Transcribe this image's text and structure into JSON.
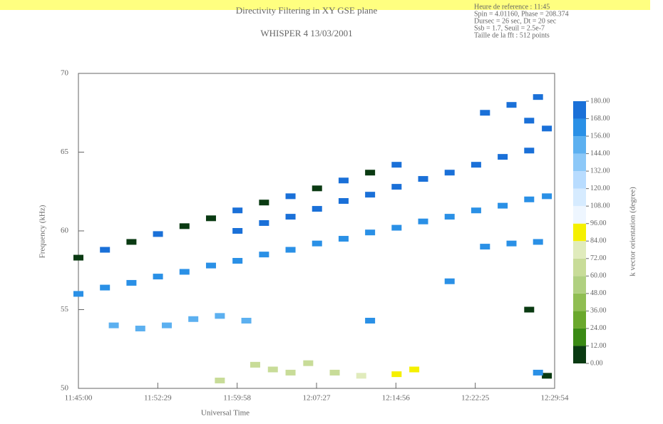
{
  "chart_data": {
    "type": "heatmap",
    "title": "Directivity Filtering in XY GSE plane",
    "subtitle": "WHISPER 4  13/03/2001",
    "info": [
      "Heure de reference : 11:45",
      "Spin = 4.01160, Phase = 208.374",
      "Dursec = 26 sec, Dt = 20 sec",
      "Ssb = 1.7, Seuil = 2.5e-7",
      "Taille de la fft : 512 points"
    ],
    "x_label": "Universal Time",
    "y_label": "Frequency (kHz)",
    "colorbar_label": "k vector orientation (degree)",
    "xlim": [
      0,
      2694
    ],
    "xticks": [
      {
        "value": 0,
        "label": "11:45:00"
      },
      {
        "value": 449,
        "label": "11:52:29"
      },
      {
        "value": 898,
        "label": "11:59:58"
      },
      {
        "value": 1347,
        "label": "12:07:27"
      },
      {
        "value": 1796,
        "label": "12:14:56"
      },
      {
        "value": 2245,
        "label": "12:22:25"
      },
      {
        "value": 2694,
        "label": "12:29:54"
      }
    ],
    "ylim": [
      50,
      70
    ],
    "yticks": [
      50,
      55,
      60,
      65,
      70
    ],
    "clim": [
      0,
      180
    ],
    "cticks": [
      {
        "value": 0,
        "label": "0.00"
      },
      {
        "value": 12,
        "label": "12.00"
      },
      {
        "value": 24,
        "label": "24.00"
      },
      {
        "value": 36,
        "label": "36.00"
      },
      {
        "value": 48,
        "label": "48.00"
      },
      {
        "value": 60,
        "label": "60.00"
      },
      {
        "value": 72,
        "label": "72.00"
      },
      {
        "value": 84,
        "label": "84.00"
      },
      {
        "value": 96,
        "label": "96.00"
      },
      {
        "value": 108,
        "label": "108.00"
      },
      {
        "value": 120,
        "label": "120.00"
      },
      {
        "value": 132,
        "label": "132.00"
      },
      {
        "value": 144,
        "label": "144.00"
      },
      {
        "value": 156,
        "label": "156.00"
      },
      {
        "value": 168,
        "label": "168.00"
      },
      {
        "value": 180,
        "label": "180.00"
      }
    ],
    "colorscale": [
      "#0a3a12",
      "#3a8a14",
      "#6aa82c",
      "#90be52",
      "#b0d080",
      "#c8dc98",
      "#e0ebbc",
      "#f5f000",
      "#eef6ff",
      "#d6ebff",
      "#b8dcff",
      "#8cc8f8",
      "#5cb0f0",
      "#2a90e6",
      "#1a70d8"
    ],
    "points": {
      "x": [
        0,
        150,
        300,
        450,
        600,
        750,
        900,
        1050,
        1200,
        1350,
        1500,
        1650,
        1800,
        1950,
        2100,
        2250,
        2400,
        2550,
        2650,
        0,
        150,
        300,
        450,
        600,
        750,
        900,
        1050,
        1200,
        1350,
        1500,
        1650,
        1800,
        900,
        1050,
        1200,
        1350,
        1500,
        1650,
        1800,
        1950,
        2100,
        2250,
        2400,
        2550,
        200,
        350,
        500,
        650,
        800,
        950,
        2300,
        2450,
        2600,
        2550,
        2650,
        2300,
        2450,
        2600,
        800,
        1000,
        1100,
        1200,
        1300,
        1450,
        1600,
        1800,
        1900,
        1650,
        2100,
        2550,
        2650,
        2600
      ],
      "y": [
        56.0,
        56.4,
        56.7,
        57.1,
        57.4,
        57.8,
        58.1,
        58.5,
        58.8,
        59.2,
        59.5,
        59.9,
        60.2,
        60.6,
        60.9,
        61.3,
        61.6,
        62.0,
        62.2,
        58.3,
        58.8,
        59.3,
        59.8,
        60.3,
        60.8,
        61.3,
        61.8,
        62.2,
        62.7,
        63.2,
        63.7,
        64.2,
        60.0,
        60.5,
        60.9,
        61.4,
        61.9,
        62.3,
        62.8,
        63.3,
        63.7,
        64.2,
        64.7,
        65.1,
        54.0,
        53.8,
        54.0,
        54.4,
        54.6,
        54.3,
        67.5,
        68.0,
        68.5,
        67.0,
        66.5,
        59.0,
        59.2,
        59.3,
        50.5,
        51.5,
        51.2,
        51.0,
        51.6,
        51.0,
        50.8,
        50.9,
        51.2,
        54.3,
        56.8,
        55.0,
        50.8,
        51.0
      ],
      "values": [
        160,
        160,
        160,
        160,
        160,
        160,
        160,
        160,
        160,
        160,
        160,
        160,
        160,
        160,
        160,
        160,
        160,
        160,
        160,
        0,
        168,
        0,
        168,
        0,
        0,
        168,
        0,
        168,
        0,
        168,
        0,
        168,
        168,
        168,
        168,
        168,
        168,
        168,
        168,
        168,
        168,
        168,
        168,
        168,
        150,
        150,
        150,
        150,
        150,
        150,
        170,
        170,
        170,
        170,
        170,
        165,
        165,
        165,
        66,
        70,
        66,
        62,
        70,
        66,
        74,
        84,
        90,
        160,
        160,
        0,
        0,
        160
      ]
    }
  }
}
